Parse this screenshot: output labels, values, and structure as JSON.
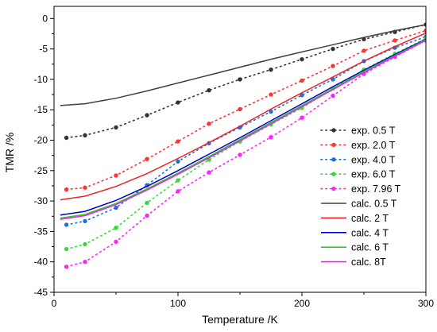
{
  "chart_data": {
    "type": "line",
    "xlabel": "Temperature /K",
    "ylabel": "TMR /%",
    "xlim": [
      0,
      300
    ],
    "ylim": [
      -45,
      2
    ],
    "x_ticks": [
      0,
      100,
      200,
      300
    ],
    "y_ticks": [
      0,
      -5,
      -10,
      -15,
      -20,
      -25,
      -30,
      -35,
      -40,
      -45
    ],
    "grid": false,
    "legend_position": "right",
    "series": [
      {
        "name": "exp. 0.5 T",
        "kind": "experiment",
        "color": "#333333",
        "x": [
          10,
          25,
          50,
          75,
          100,
          125,
          150,
          175,
          200,
          225,
          250,
          275,
          300
        ],
        "y": [
          -19.6,
          -19.2,
          -17.9,
          -15.9,
          -13.8,
          -11.8,
          -10.0,
          -8.4,
          -6.7,
          -5.0,
          -3.4,
          -2.2,
          -1.0
        ]
      },
      {
        "name": "exp. 2.0 T",
        "kind": "experiment",
        "color": "#ff3333",
        "x": [
          10,
          25,
          50,
          75,
          100,
          125,
          150,
          175,
          200,
          225,
          250,
          275,
          300
        ],
        "y": [
          -28.1,
          -27.8,
          -25.8,
          -23.1,
          -20.2,
          -17.3,
          -14.9,
          -12.5,
          -10.2,
          -7.8,
          -5.3,
          -3.6,
          -2.0
        ]
      },
      {
        "name": "exp. 4.0 T",
        "kind": "experiment",
        "color": "#1e6fe0",
        "x": [
          10,
          25,
          50,
          75,
          100,
          125,
          150,
          175,
          200,
          225,
          250,
          275,
          300
        ],
        "y": [
          -33.9,
          -33.3,
          -31.1,
          -27.4,
          -23.5,
          -20.5,
          -17.9,
          -15.3,
          -12.6,
          -10.0,
          -7.0,
          -4.8,
          -3.0
        ]
      },
      {
        "name": "exp. 6.0 T",
        "kind": "experiment",
        "color": "#33dd33",
        "x": [
          10,
          25,
          50,
          75,
          100,
          125,
          150,
          175,
          200,
          225,
          250,
          275,
          300
        ],
        "y": [
          -37.9,
          -37.1,
          -34.4,
          -30.3,
          -26.6,
          -23.2,
          -20.2,
          -17.4,
          -14.7,
          -11.5,
          -8.4,
          -5.8,
          -3.3
        ]
      },
      {
        "name": "exp. 7.96 T",
        "kind": "experiment",
        "color": "#ff22ff",
        "x": [
          10,
          25,
          50,
          75,
          100,
          125,
          150,
          175,
          200,
          225,
          250,
          275,
          300
        ],
        "y": [
          -40.8,
          -40.0,
          -36.7,
          -32.4,
          -28.4,
          -25.3,
          -22.4,
          -19.5,
          -16.3,
          -12.7,
          -9.1,
          -6.3,
          -3.6
        ]
      },
      {
        "name": "calc. 0.5 T",
        "kind": "calculation",
        "color": "#404040",
        "x": [
          5,
          25,
          50,
          75,
          100,
          125,
          150,
          175,
          200,
          225,
          250,
          275,
          300
        ],
        "y": [
          -14.3,
          -14.0,
          -13.1,
          -11.9,
          -10.6,
          -9.3,
          -8.0,
          -6.7,
          -5.5,
          -4.3,
          -3.1,
          -2.0,
          -1.0
        ]
      },
      {
        "name": "calc. 2 T",
        "kind": "calculation",
        "color": "#ee2222",
        "x": [
          5,
          25,
          50,
          75,
          100,
          125,
          150,
          175,
          200,
          225,
          250,
          275,
          300
        ],
        "y": [
          -29.8,
          -29.2,
          -27.6,
          -25.5,
          -23.0,
          -20.4,
          -17.7,
          -14.9,
          -12.2,
          -9.6,
          -7.0,
          -4.6,
          -2.4
        ]
      },
      {
        "name": "calc. 4 T",
        "kind": "calculation",
        "color": "#0000cc",
        "x": [
          5,
          25,
          50,
          75,
          100,
          125,
          150,
          175,
          200,
          225,
          250,
          275,
          300
        ],
        "y": [
          -32.3,
          -31.7,
          -29.9,
          -27.6,
          -25.0,
          -22.3,
          -19.6,
          -16.8,
          -14.0,
          -11.2,
          -8.5,
          -5.9,
          -3.4
        ]
      },
      {
        "name": "calc. 6 T",
        "kind": "calculation",
        "color": "#22cc22",
        "x": [
          5,
          25,
          50,
          75,
          100,
          125,
          150,
          175,
          200,
          225,
          250,
          275,
          300
        ],
        "y": [
          -32.8,
          -32.2,
          -30.4,
          -28.0,
          -25.4,
          -22.7,
          -19.9,
          -17.1,
          -14.3,
          -11.5,
          -8.7,
          -6.1,
          -3.5
        ]
      },
      {
        "name": "calc. 8T",
        "kind": "calculation",
        "color": "#ee22ee",
        "x": [
          5,
          25,
          50,
          75,
          100,
          125,
          150,
          175,
          200,
          225,
          250,
          275,
          300
        ],
        "y": [
          -33.0,
          -32.4,
          -30.6,
          -28.2,
          -25.6,
          -22.9,
          -20.1,
          -17.3,
          -14.5,
          -11.7,
          -8.9,
          -6.2,
          -3.6
        ]
      }
    ]
  }
}
